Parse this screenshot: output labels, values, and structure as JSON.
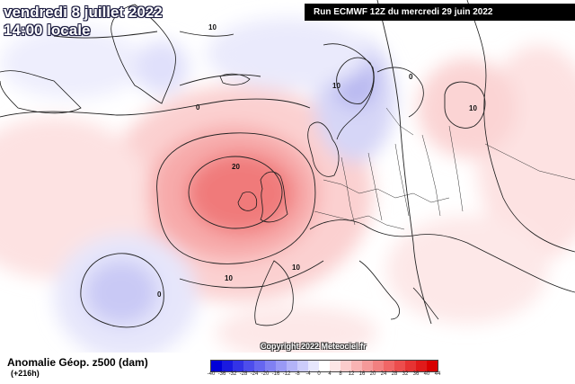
{
  "header": {
    "date_line": "vendredi 8 juillet 2022",
    "time_line": "14:00 locale",
    "run_info": "Run ECMWF 12Z du mercredi 29 juin 2022"
  },
  "footer": {
    "variable": "Anomalie Géop. z500 (dam)",
    "lead_time": "(+216h)",
    "copyright": "Copyright 2022 Meteociel.fr"
  },
  "map": {
    "region": "Europe / North Atlantic",
    "contour_labels": [
      "10",
      "10",
      "0",
      "10",
      "10",
      "20",
      "10",
      "0",
      "0"
    ],
    "anomaly_centers": [
      {
        "sign": "positive",
        "label": "20",
        "location": "British Isles"
      },
      {
        "sign": "positive",
        "label": "10",
        "location": "Western Russia"
      },
      {
        "sign": "negative",
        "label": "-10",
        "location": "Scandinavia"
      },
      {
        "sign": "negative",
        "label": "0",
        "location": "Central Atlantic"
      }
    ]
  },
  "legend": {
    "ticks": [
      "-40",
      "-36",
      "-32",
      "-28",
      "-24",
      "-20",
      "-16",
      "-12",
      "-8",
      "-4",
      "0",
      "4",
      "8",
      "12",
      "16",
      "20",
      "24",
      "28",
      "32",
      "36",
      "40",
      "44"
    ],
    "colors": [
      "#0000d8",
      "#1a1ae0",
      "#3333e6",
      "#4d4dec",
      "#6666f0",
      "#8080f2",
      "#9999f5",
      "#b3b3f8",
      "#ccccfb",
      "#e6e6fd",
      "#ffffff",
      "#fde6e6",
      "#fbcccc",
      "#f8b3b3",
      "#f59999",
      "#f28080",
      "#f06666",
      "#ec4d4d",
      "#e63333",
      "#e01a1a",
      "#d80000"
    ]
  }
}
